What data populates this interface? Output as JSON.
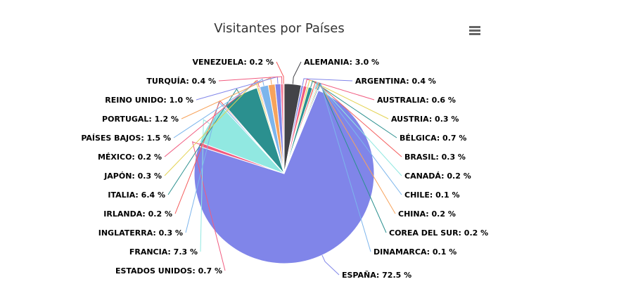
{
  "chart_data": {
    "type": "pie",
    "title": "Visitantes por Países",
    "slices": [
      {
        "name": "ALEMANIA",
        "value": 3.0,
        "label": "ALEMANIA: 3.0 %",
        "color": "#434348"
      },
      {
        "name": "ARGENTINA",
        "value": 0.4,
        "label": "ARGENTINA: 0.4 %",
        "color": "#8085e9"
      },
      {
        "name": "AUSTRALIA",
        "value": 0.6,
        "label": "AUSTRALIA: 0.6 %",
        "color": "#f15c80"
      },
      {
        "name": "AUSTRIA",
        "value": 0.3,
        "label": "AUSTRIA: 0.3 %",
        "color": "#e4d354"
      },
      {
        "name": "BÉLGICA",
        "value": 0.7,
        "label": "BÉLGICA: 0.7 %",
        "color": "#2b908f"
      },
      {
        "name": "BRASIL",
        "value": 0.3,
        "label": "BRASIL: 0.3 %",
        "color": "#f45b5b"
      },
      {
        "name": "CANADÁ",
        "value": 0.2,
        "label": "CANADÁ: 0.2 %",
        "color": "#91e8e1"
      },
      {
        "name": "CHILE",
        "value": 0.1,
        "label": "CHILE: 0.1 %",
        "color": "#7cb5ec"
      },
      {
        "name": "CHINA",
        "value": 0.2,
        "label": "CHINA: 0.2 %",
        "color": "#f7a35c"
      },
      {
        "name": "COREA DEL SUR",
        "value": 0.2,
        "label": "COREA DEL SUR: 0.2 %",
        "color": "#2b908f"
      },
      {
        "name": "DINAMARCA",
        "value": 0.1,
        "label": "DINAMARCA: 0.1 %",
        "color": "#7cb5ec"
      },
      {
        "name": "ESPAÑA",
        "value": 72.5,
        "label": "ESPAÑA: 72.5 %",
        "color": "#8085e9"
      },
      {
        "name": "ESTADOS UNIDOS",
        "value": 0.7,
        "label": "ESTADOS UNIDOS: 0.7 %",
        "color": "#f15c80"
      },
      {
        "name": "FRANCIA",
        "value": 7.3,
        "label": "FRANCIA: 7.3 %",
        "color": "#91e8e1"
      },
      {
        "name": "INGLATERRA",
        "value": 0.3,
        "label": "INGLATERRA: 0.3 %",
        "color": "#7cb5ec"
      },
      {
        "name": "IRLANDA",
        "value": 0.2,
        "label": "IRLANDA: 0.2 %",
        "color": "#f45b5b"
      },
      {
        "name": "ITALIA",
        "value": 6.4,
        "label": "ITALIA: 6.4 %",
        "color": "#2b908f"
      },
      {
        "name": "JAPÓN",
        "value": 0.3,
        "label": "JAPÓN: 0.3 %",
        "color": "#e4d354"
      },
      {
        "name": "MÉXICO",
        "value": 0.2,
        "label": "MÉXICO: 0.2 %",
        "color": "#f15c80"
      },
      {
        "name": "PAÍSES BAJOS",
        "value": 1.5,
        "label": "PAÍSES BAJOS: 1.5 %",
        "color": "#7cb5ec"
      },
      {
        "name": "PORTUGAL",
        "value": 1.2,
        "label": "PORTUGAL: 1.2 %",
        "color": "#f7a35c"
      },
      {
        "name": "REINO UNIDO",
        "value": 1.0,
        "label": "REINO UNIDO: 1.0 %",
        "color": "#8085e9"
      },
      {
        "name": "TURQUÍA",
        "value": 0.4,
        "label": "TURQUÍA: 0.4 %",
        "color": "#f15c80"
      },
      {
        "name": "VENEZUELA",
        "value": 0.2,
        "label": "VENEZUELA: 0.2 %",
        "color": "#f45b5b"
      }
    ],
    "legend": "none",
    "data_labels": "outside-with-connectors"
  },
  "toolbar": {
    "menu_icon": "hamburger-menu-icon"
  }
}
